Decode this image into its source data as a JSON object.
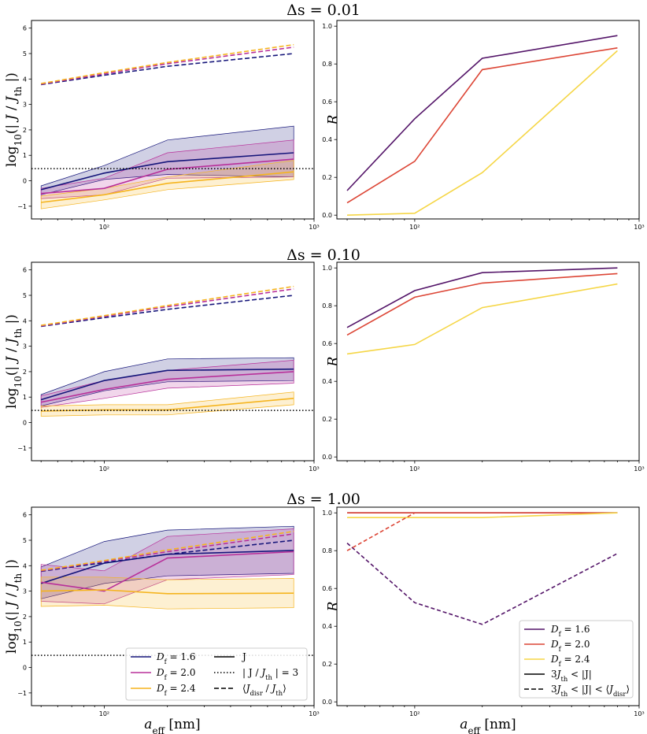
{
  "chart_data": {
    "type": "line",
    "rows": [
      {
        "title": "Δs = 0.01",
        "left": {
          "ylabel": "log10(| J / J_th |)",
          "ylim": [
            -1.5,
            6.3
          ],
          "xlim_log10": [
            1.63,
            3.0
          ],
          "threshold": 0.477,
          "series": [
            {
              "name": "D_f = 1.6",
              "color": "#15157a",
              "x": [
                50,
                100,
                200,
                800
              ],
              "J": [
                -0.35,
                0.3,
                0.75,
                1.1
              ],
              "lo": [
                -0.55,
                0.05,
                0.25,
                0.15
              ],
              "hi": [
                -0.2,
                0.6,
                1.6,
                2.15
              ],
              "disr": [
                3.78,
                4.15,
                4.5,
                5.0
              ]
            },
            {
              "name": "D_f = 2.0",
              "color": "#b8309a",
              "x": [
                50,
                100,
                200,
                800
              ],
              "J": [
                -0.5,
                -0.3,
                0.45,
                0.85
              ],
              "lo": [
                -0.7,
                -0.55,
                0.1,
                0.15
              ],
              "hi": [
                -0.3,
                0.1,
                1.1,
                1.6
              ],
              "disr": [
                3.8,
                4.2,
                4.6,
                5.25
              ]
            },
            {
              "name": "D_f = 2.4",
              "color": "#f5b41e",
              "x": [
                50,
                100,
                200,
                800
              ],
              "J": [
                -0.85,
                -0.55,
                -0.1,
                0.35
              ],
              "lo": [
                -1.1,
                -0.75,
                -0.35,
                0.05
              ],
              "hi": [
                -0.6,
                -0.3,
                0.15,
                0.8
              ],
              "disr": [
                3.82,
                4.25,
                4.65,
                5.35
              ]
            }
          ]
        },
        "right": {
          "ylabel": "R",
          "ylim": [
            -0.02,
            1.03
          ],
          "series": [
            {
              "name": "D_f = 1.6",
              "color": "#531468",
              "style": "solid",
              "x": [
                50,
                100,
                200,
                800
              ],
              "y": [
                0.13,
                0.51,
                0.83,
                0.95
              ]
            },
            {
              "name": "D_f = 2.0",
              "color": "#dc4535",
              "style": "solid",
              "x": [
                50,
                100,
                200,
                800
              ],
              "y": [
                0.065,
                0.285,
                0.77,
                0.885
              ]
            },
            {
              "name": "D_f = 2.4",
              "color": "#f5d646",
              "style": "solid",
              "x": [
                50,
                100,
                200,
                800
              ],
              "y": [
                0.0,
                0.01,
                0.225,
                0.87
              ]
            }
          ]
        }
      },
      {
        "title": "Δs = 0.10",
        "left": {
          "ylabel": "log10(| J / J_th |)",
          "ylim": [
            -1.5,
            6.3
          ],
          "xlim_log10": [
            1.63,
            3.0
          ],
          "threshold": 0.477,
          "series": [
            {
              "name": "D_f = 1.6",
              "color": "#15157a",
              "x": [
                50,
                100,
                200,
                800
              ],
              "J": [
                0.9,
                1.65,
                2.05,
                2.1
              ],
              "lo": [
                0.65,
                1.25,
                1.6,
                1.65
              ],
              "hi": [
                1.1,
                2.0,
                2.5,
                2.55
              ]
            },
            {
              "name": "D_f = 2.0",
              "color": "#b8309a",
              "x": [
                50,
                100,
                200,
                800
              ],
              "J": [
                0.8,
                1.3,
                1.7,
                2.0
              ],
              "lo": [
                0.6,
                0.95,
                1.35,
                1.55
              ],
              "hi": [
                1.05,
                1.65,
                2.05,
                2.45
              ]
            },
            {
              "name": "D_f = 2.4",
              "color": "#f5b41e",
              "x": [
                50,
                100,
                200,
                800
              ],
              "J": [
                0.45,
                0.5,
                0.5,
                0.95
              ],
              "lo": [
                0.25,
                0.3,
                0.3,
                0.7
              ],
              "hi": [
                0.65,
                0.7,
                0.7,
                1.2
              ]
            }
          ],
          "disr": [
            {
              "color": "#15157a",
              "x": [
                50,
                100,
                200,
                800
              ],
              "y": [
                3.78,
                4.12,
                4.45,
                5.0
              ]
            },
            {
              "color": "#b8309a",
              "x": [
                50,
                100,
                200,
                800
              ],
              "y": [
                3.8,
                4.17,
                4.55,
                5.25
              ]
            },
            {
              "color": "#f5b41e",
              "x": [
                50,
                100,
                200,
                800
              ],
              "y": [
                3.82,
                4.2,
                4.6,
                5.35
              ]
            }
          ]
        },
        "right": {
          "ylabel": "R",
          "ylim": [
            -0.02,
            1.03
          ],
          "series": [
            {
              "name": "D_f = 1.6",
              "color": "#531468",
              "style": "solid",
              "x": [
                50,
                100,
                200,
                800
              ],
              "y": [
                0.685,
                0.88,
                0.975,
                1.0
              ]
            },
            {
              "name": "D_f = 2.0",
              "color": "#dc4535",
              "style": "solid",
              "x": [
                50,
                100,
                200,
                800
              ],
              "y": [
                0.645,
                0.845,
                0.92,
                0.97
              ]
            },
            {
              "name": "D_f = 2.4",
              "color": "#f5d646",
              "style": "solid",
              "x": [
                50,
                100,
                200,
                800
              ],
              "y": [
                0.545,
                0.595,
                0.79,
                0.915
              ]
            }
          ]
        }
      },
      {
        "title": "Δs = 1.00",
        "left": {
          "ylabel": "log10(| J / J_th |)",
          "ylim": [
            -1.5,
            6.3
          ],
          "xlim_log10": [
            1.63,
            3.0
          ],
          "threshold": 0.477,
          "series": [
            {
              "name": "D_f = 1.6",
              "color": "#15157a",
              "x": [
                50,
                100,
                200,
                800
              ],
              "J": [
                3.3,
                4.1,
                4.45,
                4.6
              ],
              "lo": [
                2.7,
                3.3,
                3.6,
                3.7
              ],
              "hi": [
                3.95,
                4.95,
                5.4,
                5.55
              ]
            },
            {
              "name": "D_f = 2.0",
              "color": "#b8309a",
              "x": [
                50,
                100,
                200,
                800
              ],
              "J": [
                3.35,
                3.0,
                4.3,
                4.55
              ],
              "lo": [
                2.6,
                2.5,
                3.45,
                3.65
              ],
              "hi": [
                4.05,
                3.8,
                5.15,
                5.45
              ]
            },
            {
              "name": "D_f = 2.4",
              "color": "#f5b41e",
              "x": [
                50,
                100,
                200,
                800
              ],
              "J": [
                3.0,
                3.05,
                2.9,
                2.92
              ],
              "lo": [
                2.4,
                2.45,
                2.3,
                2.35
              ],
              "hi": [
                3.55,
                3.55,
                3.45,
                3.5
              ]
            }
          ],
          "disr": [
            {
              "color": "#15157a",
              "x": [
                50,
                100,
                200,
                800
              ],
              "y": [
                3.78,
                4.12,
                4.45,
                5.0
              ]
            },
            {
              "color": "#b8309a",
              "x": [
                50,
                100,
                200,
                800
              ],
              "y": [
                3.8,
                4.17,
                4.55,
                5.25
              ]
            },
            {
              "color": "#f5b41e",
              "x": [
                50,
                100,
                200,
                800
              ],
              "y": [
                3.82,
                4.2,
                4.62,
                5.35
              ]
            }
          ]
        },
        "right": {
          "ylabel": "R",
          "ylim": [
            -0.02,
            1.03
          ],
          "series": [
            {
              "name": "D_f = 1.6",
              "color": "#531468",
              "style": "solid",
              "x": [
                50,
                100,
                200,
                800
              ],
              "y": [
                1.0,
                1.0,
                1.0,
                1.0
              ]
            },
            {
              "name": "D_f = 2.0",
              "color": "#dc4535",
              "style": "solid",
              "x": [
                50,
                100,
                200,
                800
              ],
              "y": [
                1.0,
                1.0,
                1.0,
                1.0
              ]
            },
            {
              "name": "D_f = 2.4",
              "color": "#f5d646",
              "style": "solid",
              "x": [
                50,
                100,
                200,
                800
              ],
              "y": [
                0.975,
                0.975,
                0.975,
                1.0
              ]
            },
            {
              "name": "D_f = 1.6 (disr)",
              "color": "#531468",
              "style": "dashed",
              "x": [
                50,
                100,
                200,
                800
              ],
              "y": [
                0.84,
                0.525,
                0.41,
                0.785
              ]
            },
            {
              "name": "D_f = 2.0 (disr)",
              "color": "#dc4535",
              "style": "dashed",
              "x": [
                50,
                100
              ],
              "y": [
                0.8,
                1.0
              ]
            }
          ]
        }
      }
    ],
    "xlabel": "a_eff [nm]",
    "xticks": [
      "10²",
      "10³"
    ],
    "left_yticks": [
      "−1",
      "0",
      "1",
      "2",
      "3",
      "4",
      "5",
      "6"
    ],
    "right_yticks": [
      "0.0",
      "0.2",
      "0.4",
      "0.6",
      "0.8",
      "1.0"
    ],
    "legend_left": {
      "entries": [
        {
          "label": "D_f = 1.6",
          "color": "#15157a",
          "style": "solid"
        },
        {
          "label": "D_f = 2.0",
          "color": "#b8309a",
          "style": "solid"
        },
        {
          "label": "D_f = 2.4",
          "color": "#f5b41e",
          "style": "solid"
        },
        {
          "label": "J",
          "color": "#000000",
          "style": "solid"
        },
        {
          "label": "| J / J_th | = 3",
          "color": "#000000",
          "style": "dotted"
        },
        {
          "label": "⟨J_disr / J_th⟩",
          "color": "#000000",
          "style": "dashed"
        }
      ]
    },
    "legend_right": {
      "entries": [
        {
          "label": "D_f = 1.6",
          "color": "#531468",
          "style": "solid"
        },
        {
          "label": "D_f = 2.0",
          "color": "#dc4535",
          "style": "solid"
        },
        {
          "label": "D_f = 2.4",
          "color": "#f5d646",
          "style": "solid"
        },
        {
          "label": "3J_th < |J|",
          "color": "#000000",
          "style": "solid"
        },
        {
          "label": "3J_th < |J| < ⟨J_disr⟩",
          "color": "#000000",
          "style": "dashed"
        }
      ]
    }
  }
}
